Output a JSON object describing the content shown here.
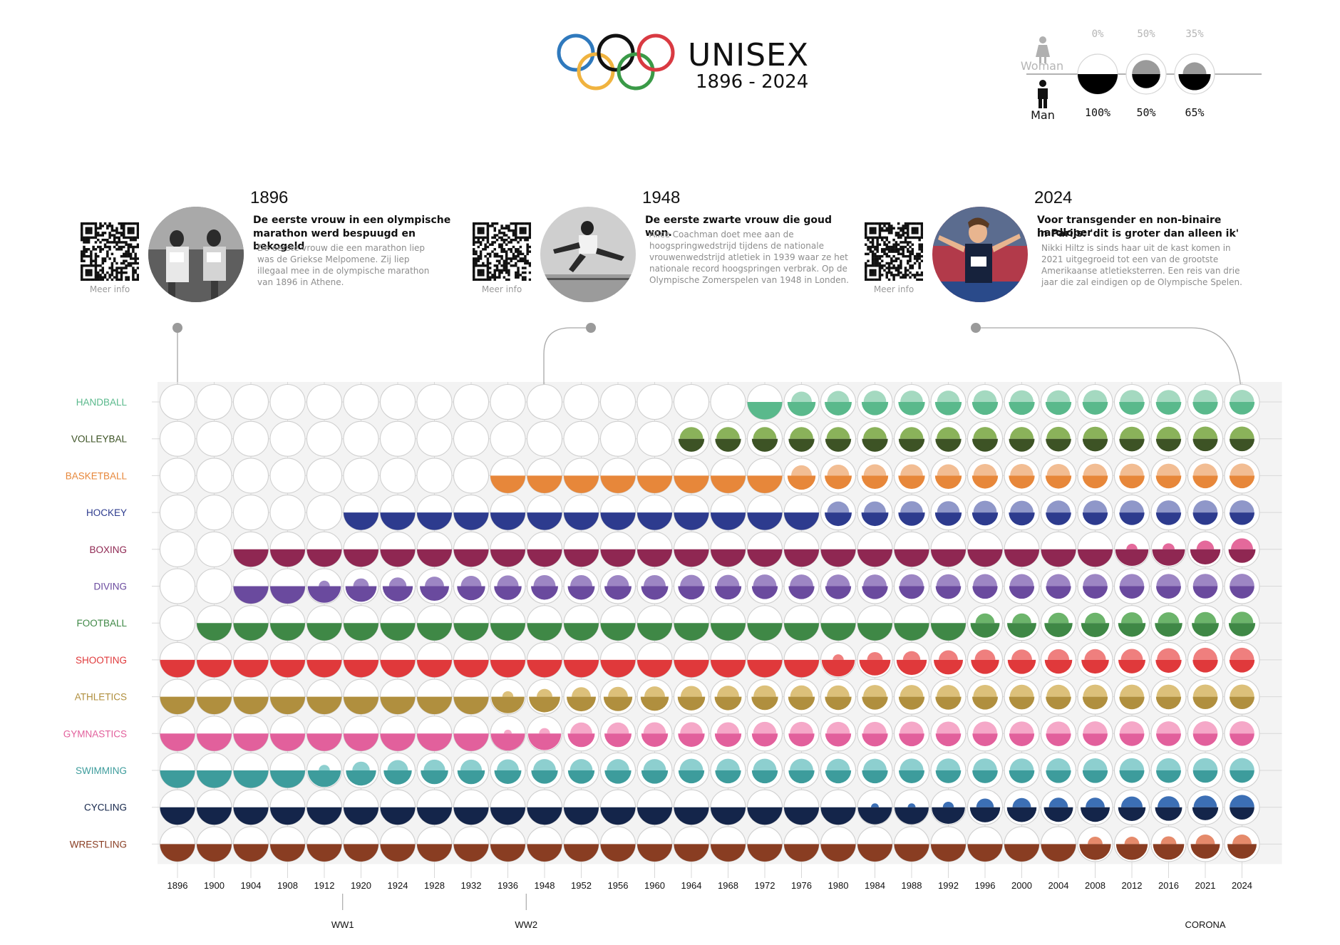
{
  "header": {
    "title": "UNISEX",
    "years": "1896 - 2024",
    "ring_colors": [
      "#2f79bd",
      "#111111",
      "#d93a42",
      "#f0b33f",
      "#3a9a47"
    ]
  },
  "legend": {
    "woman_label": "Woman",
    "man_label": "Man",
    "items": [
      {
        "woman": "0%",
        "man": "100%",
        "woman_share": 0.0
      },
      {
        "woman": "50%",
        "man": "50%",
        "woman_share": 0.5
      },
      {
        "woman": "35%",
        "man": "65%",
        "woman_share": 0.35
      }
    ]
  },
  "stories": [
    {
      "year": "1896",
      "headline": [
        "De eerste vrouw in een olympische",
        "marathon werd bespuugd en bekogeld"
      ],
      "body": [
        "De eerste vrouw die een marathon liep",
        "was de Griekse Melpomene. Zij liep",
        "illegaal mee in de olympische marathon",
        "van 1896 in Athene."
      ],
      "more": "Meer info",
      "photo": "historic-runners-photo"
    },
    {
      "year": "1948",
      "headline": [
        "De eerste zwarte vrouw die goud won."
      ],
      "body": [
        "Alice Coachman doet mee aan de",
        "hoogspringwedstrijd tijdens de nationale",
        "vrouwenwedstrijd atletiek in 1939 waar ze het",
        "nationale record hoogspringen verbrak. Op de",
        "Olympische Zomerspelen van 1948 in Londen."
      ],
      "more": "Meer info",
      "photo": "high-jumper-photo"
    },
    {
      "year": "2024",
      "headline": [
        "Voor transgender en non-binaire hardloper",
        "in Parijs: 'dit is groter dan alleen ik'"
      ],
      "body": [
        "Nikki Hiltz is sinds haar uit de kast komen in",
        "2021 uitgegroeid tot een van de grootste",
        "Amerikaanse atletieksterren. Een reis van drie",
        "jaar die zal eindigen op de Olympische Spelen."
      ],
      "more": "Meer info",
      "photo": "runner-finish-photo"
    }
  ],
  "chart_data": {
    "type": "heatmap",
    "years": [
      "1896",
      "1900",
      "1904",
      "1908",
      "1912",
      "1920",
      "1924",
      "1928",
      "1932",
      "1936",
      "1948",
      "1952",
      "1956",
      "1960",
      "1964",
      "1968",
      "1972",
      "1976",
      "1980",
      "1984",
      "1988",
      "1992",
      "1996",
      "2000",
      "2004",
      "2008",
      "2012",
      "2016",
      "2021",
      "2024"
    ],
    "events": [
      {
        "label": "WW1",
        "after_year": "1912"
      },
      {
        "label": "WW2",
        "after_year": "1936"
      },
      {
        "label": "CORONA",
        "year": "2021"
      }
    ],
    "value_meaning": "woman share of participants (0 = men only, 0.5 = equal); null = sport not held",
    "sports": [
      {
        "name": "HANDBALL",
        "color": "#5ab98c",
        "woman_share": [
          null,
          null,
          null,
          null,
          null,
          null,
          null,
          null,
          null,
          null,
          null,
          null,
          null,
          null,
          null,
          null,
          0,
          0.35,
          0.4,
          0.42,
          0.42,
          0.42,
          0.45,
          0.45,
          0.45,
          0.47,
          0.47,
          0.47,
          0.48,
          0.48
        ]
      },
      {
        "name": "VOLLEYBAL",
        "color": "#3d5325",
        "woman_share": [
          null,
          null,
          null,
          null,
          null,
          null,
          null,
          null,
          null,
          null,
          null,
          null,
          null,
          null,
          0.45,
          0.45,
          0.45,
          0.45,
          0.45,
          0.45,
          0.45,
          0.45,
          0.46,
          0.46,
          0.47,
          0.48,
          0.48,
          0.48,
          0.49,
          0.49
        ],
        "woman_color": "#8ab25a"
      },
      {
        "name": "BASKETBALL",
        "color": "#e7873a",
        "woman_share": [
          null,
          null,
          null,
          null,
          null,
          null,
          null,
          null,
          null,
          0,
          0,
          0,
          0,
          0,
          0,
          0,
          0,
          0.35,
          0.4,
          0.42,
          0.42,
          0.42,
          0.45,
          0.45,
          0.45,
          0.47,
          0.47,
          0.47,
          0.48,
          0.48
        ]
      },
      {
        "name": "HOCKEY",
        "color": "#2d3b8e",
        "woman_share": [
          null,
          null,
          null,
          null,
          null,
          0,
          0,
          0,
          0,
          0,
          0,
          0,
          0,
          0,
          0,
          0,
          0,
          0,
          0.4,
          0.4,
          0.42,
          0.42,
          0.45,
          0.45,
          0.47,
          0.48,
          0.48,
          0.48,
          0.49,
          0.49
        ],
        "woman_color": "#8f97c9"
      },
      {
        "name": "BOXING",
        "color": "#8f2752",
        "woman_share": [
          null,
          null,
          0,
          0,
          0,
          0,
          0,
          0,
          0,
          0,
          0,
          0,
          0,
          0,
          0,
          0,
          0,
          0,
          0,
          0,
          0,
          0,
          0,
          0,
          0,
          0,
          0.1,
          0.12,
          0.25,
          0.4
        ],
        "woman_color": "#e4699b"
      },
      {
        "name": "DIVING",
        "color": "#6a4a9e",
        "woman_share": [
          null,
          null,
          0,
          0,
          0.1,
          0.2,
          0.25,
          0.3,
          0.35,
          0.38,
          0.4,
          0.4,
          0.4,
          0.4,
          0.42,
          0.42,
          0.45,
          0.45,
          0.45,
          0.45,
          0.47,
          0.47,
          0.48,
          0.48,
          0.48,
          0.49,
          0.49,
          0.49,
          0.5,
          0.5
        ],
        "woman_color": "#9d86c4"
      },
      {
        "name": "FOOTBALL",
        "color": "#3f8846",
        "woman_share": [
          null,
          0,
          0,
          0,
          0,
          0,
          0,
          0,
          0,
          0,
          0,
          0,
          0,
          0,
          0,
          0,
          0,
          0,
          0,
          0,
          0,
          0,
          0.3,
          0.3,
          0.35,
          0.35,
          0.38,
          0.38,
          0.4,
          0.42
        ],
        "woman_color": "#6cb46b"
      },
      {
        "name": "SHOOTING",
        "color": "#e0393b",
        "woman_share": [
          0,
          0,
          0,
          0,
          0,
          0,
          0,
          0,
          0,
          0,
          0,
          0,
          0,
          0,
          0,
          0,
          0,
          0,
          0.1,
          0.2,
          0.25,
          0.3,
          0.35,
          0.35,
          0.38,
          0.38,
          0.4,
          0.45,
          0.48,
          0.48
        ],
        "woman_color": "#ef7f7e"
      },
      {
        "name": "ATHLETICS",
        "color": "#b08f3e",
        "woman_share": [
          0,
          0,
          0,
          0,
          0,
          0,
          0,
          0,
          0,
          0.1,
          0.2,
          0.3,
          0.32,
          0.35,
          0.38,
          0.4,
          0.42,
          0.42,
          0.42,
          0.45,
          0.45,
          0.45,
          0.46,
          0.47,
          0.47,
          0.48,
          0.48,
          0.48,
          0.49,
          0.49
        ],
        "woman_color": "#dcc07a"
      },
      {
        "name": "GYMNASTICS",
        "color": "#e2609c",
        "woman_share": [
          0,
          0,
          0,
          0,
          0,
          0,
          0,
          0,
          0,
          0.05,
          0.1,
          0.4,
          0.4,
          0.42,
          0.42,
          0.42,
          0.45,
          0.45,
          0.45,
          0.45,
          0.47,
          0.47,
          0.48,
          0.48,
          0.48,
          0.49,
          0.49,
          0.49,
          0.5,
          0.5
        ],
        "woman_color": "#f5a8c8"
      },
      {
        "name": "SWIMMING",
        "color": "#3d9c9c",
        "woman_share": [
          0,
          0,
          0,
          0,
          0.1,
          0.25,
          0.35,
          0.38,
          0.38,
          0.4,
          0.42,
          0.42,
          0.42,
          0.42,
          0.45,
          0.45,
          0.45,
          0.45,
          0.45,
          0.45,
          0.46,
          0.47,
          0.47,
          0.47,
          0.48,
          0.48,
          0.49,
          0.49,
          0.5,
          0.5
        ],
        "woman_color": "#8dcfcf"
      },
      {
        "name": "CYCLING",
        "color": "#14254a",
        "woman_share": [
          0,
          0,
          0,
          0,
          0,
          0,
          0,
          0,
          0,
          0,
          0,
          0,
          0,
          0,
          0,
          0,
          0,
          0,
          0,
          0.05,
          0.05,
          0.1,
          0.25,
          0.28,
          0.3,
          0.3,
          0.38,
          0.4,
          0.45,
          0.5
        ],
        "woman_color": "#3c6fb5"
      },
      {
        "name": "WRESTLING",
        "color": "#893d22",
        "woman_share": [
          0,
          0,
          0,
          0,
          0,
          0,
          0,
          0,
          0,
          0,
          0,
          0,
          0,
          0,
          0,
          0,
          0,
          0,
          0,
          0,
          0,
          0,
          0,
          0,
          0,
          0.18,
          0.18,
          0.2,
          0.3,
          0.3
        ],
        "woman_color": "#e58a6b"
      }
    ]
  }
}
